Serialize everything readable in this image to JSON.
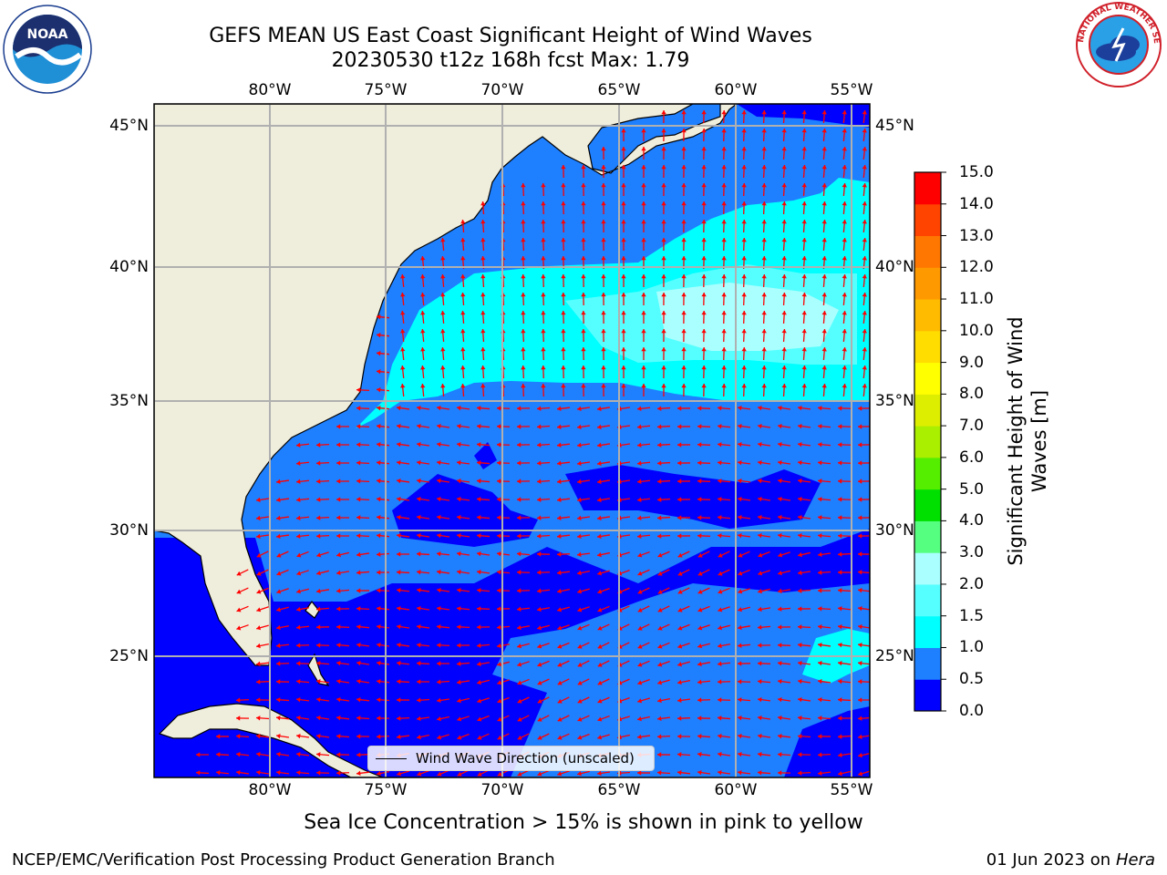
{
  "title_line1": "GEFS MEAN US East Coast Significant Height of Wind Waves",
  "title_line2": "20230530 t12z 168h fcst   Max: 1.79",
  "map": {
    "lon_labels": [
      "80°W",
      "75°W",
      "70°W",
      "65°W",
      "60°W",
      "55°W"
    ],
    "lat_labels": [
      "45°N",
      "40°N",
      "35°N",
      "30°N",
      "25°N"
    ],
    "legend_label": "Wind Wave Direction (unscaled)",
    "land_color": "#efeddc",
    "ocean_colors": {
      "0.0-0.5": "#0000ff",
      "0.5-1.0": "#1e7fff",
      "1.0-1.5": "#00ffff",
      "1.5-2.0": "#55ffff",
      "2.0-3.0": "#aaffff"
    },
    "arrow_color": "#ff0000",
    "grid": true
  },
  "colorbar": {
    "label": "Significant Height of Wind Waves [m]",
    "ticks": [
      "0.0",
      "0.5",
      "1.0",
      "1.5",
      "2.0",
      "3.0",
      "4.0",
      "5.0",
      "6.0",
      "7.0",
      "8.0",
      "9.0",
      "10.0",
      "11.0",
      "12.0",
      "13.0",
      "14.0",
      "15.0"
    ],
    "colors": [
      "#0000ff",
      "#1e7fff",
      "#00ffff",
      "#55ffff",
      "#aaffff",
      "#55ff7f",
      "#00e000",
      "#55ee00",
      "#aaee00",
      "#ddee00",
      "#ffff00",
      "#ffdd00",
      "#ffbb00",
      "#ff9900",
      "#ff7700",
      "#ff4400",
      "#ff0000"
    ]
  },
  "note": "Sea Ice Concentration > 15% is shown in pink to yellow",
  "footer_left": "NCEP/EMC/Verification Post Processing Product Generation Branch",
  "footer_date": "01 Jun 2023 on",
  "footer_host": "Hera",
  "logos": {
    "noaa_text": "NOAA",
    "nws_text": "NATIONAL WEATHER SERVICE"
  }
}
